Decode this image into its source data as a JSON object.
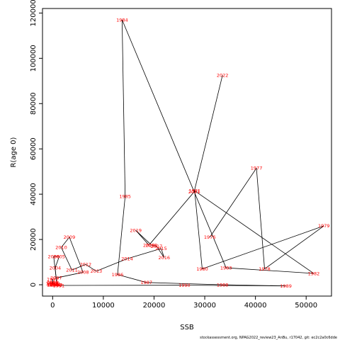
{
  "footer": "stockassessment.org, NPAG2022_review23_AnBu, r17042, git: ec2c2a0c6dde",
  "chart_data": {
    "type": "line",
    "xlabel": "SSB",
    "ylabel": "R(age 0)",
    "xlim": [
      -2000,
      55000
    ],
    "ylim": [
      -5000,
      122000
    ],
    "xticks": [
      0,
      10000,
      20000,
      30000,
      40000,
      50000
    ],
    "yticks": [
      0,
      20000,
      40000,
      60000,
      80000,
      100000,
      120000
    ],
    "grid": false,
    "line_color": "#000000",
    "label_color": "#ff0000",
    "points": [
      {
        "year": "1976",
        "x": 31000,
        "y": 21000
      },
      {
        "year": "1977",
        "x": 40200,
        "y": 51500
      },
      {
        "year": "1978",
        "x": 41800,
        "y": 7000
      },
      {
        "year": "1979",
        "x": 53500,
        "y": 26000
      },
      {
        "year": "1980",
        "x": 29500,
        "y": 7000
      },
      {
        "year": "1981",
        "x": 28000,
        "y": 41500
      },
      {
        "year": "1982",
        "x": 51500,
        "y": 5000
      },
      {
        "year": "1983",
        "x": 34200,
        "y": 7500
      },
      {
        "year": "1984",
        "x": 13700,
        "y": 117000
      },
      {
        "year": "1985",
        "x": 14300,
        "y": 39000
      },
      {
        "year": "1986",
        "x": 12800,
        "y": 4500
      },
      {
        "year": "1987",
        "x": 18500,
        "y": 1000
      },
      {
        "year": "1988",
        "x": 33500,
        "y": 0
      },
      {
        "year": "1989",
        "x": 46000,
        "y": -500
      },
      {
        "year": "1990",
        "x": 26000,
        "y": -200
      },
      {
        "year": "1991",
        "x": 1200,
        "y": -300
      },
      {
        "year": "1992",
        "x": 100,
        "y": 0
      },
      {
        "year": "1993",
        "x": -200,
        "y": 500
      },
      {
        "year": "1994",
        "x": 0,
        "y": 0
      },
      {
        "year": "1995",
        "x": 0,
        "y": 200
      },
      {
        "year": "1996",
        "x": 0,
        "y": 300
      },
      {
        "year": "1997",
        "x": 0,
        "y": 2500
      },
      {
        "year": "1998",
        "x": 0,
        "y": 800
      },
      {
        "year": "1999",
        "x": 0,
        "y": 1000
      },
      {
        "year": "2000",
        "x": 200,
        "y": 700
      },
      {
        "year": "2001",
        "x": 500,
        "y": 100
      },
      {
        "year": "2002",
        "x": 700,
        "y": 0
      },
      {
        "year": "2003",
        "x": 800,
        "y": -100
      },
      {
        "year": "2004",
        "x": 500,
        "y": 7500
      },
      {
        "year": "2005",
        "x": 1300,
        "y": 12500
      },
      {
        "year": "2006",
        "x": 200,
        "y": 12500
      },
      {
        "year": "2007",
        "x": 700,
        "y": 3000
      },
      {
        "year": "2008",
        "x": 6000,
        "y": 5500
      },
      {
        "year": "2009",
        "x": 3300,
        "y": 21000
      },
      {
        "year": "2010",
        "x": 1700,
        "y": 16500
      },
      {
        "year": "2011",
        "x": 3800,
        "y": 6500
      },
      {
        "year": "2012",
        "x": 6500,
        "y": 9000
      },
      {
        "year": "2013",
        "x": 8600,
        "y": 6000
      },
      {
        "year": "2014",
        "x": 14700,
        "y": 11500
      },
      {
        "year": "2015",
        "x": 21400,
        "y": 16000
      },
      {
        "year": "2016",
        "x": 22000,
        "y": 12000
      },
      {
        "year": "2017",
        "x": 20500,
        "y": 17000
      },
      {
        "year": "2018",
        "x": 19500,
        "y": 17500
      },
      {
        "year": "2019",
        "x": 16400,
        "y": 24000
      },
      {
        "year": "2020",
        "x": 19000,
        "y": 17500
      },
      {
        "year": "2021",
        "x": 27900,
        "y": 41000
      },
      {
        "year": "2022",
        "x": 33500,
        "y": 92500
      }
    ]
  }
}
